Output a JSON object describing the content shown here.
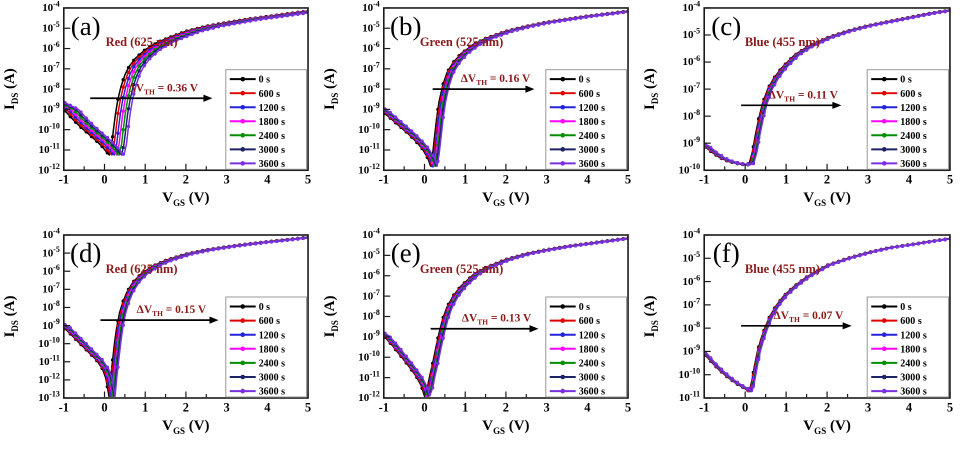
{
  "figure": {
    "background": "#ffffff",
    "text_color": "#000000",
    "accent_text_color": "#8b1a1a",
    "axis_color": "#1a1a1a",
    "legend_border_color": "#999999",
    "legend_bg": "#ffffff",
    "legend_position": "right-center",
    "grid": false,
    "xlabel": {
      "base": "V",
      "sub": "GS",
      "unit": " (V)"
    },
    "ylabel": {
      "base": "I",
      "sub": "DS",
      "unit": " (A)"
    },
    "series": [
      {
        "label": "0 s",
        "color": "#000000"
      },
      {
        "label": "600 s",
        "color": "#e00000"
      },
      {
        "label": "1200 s",
        "color": "#2424dd"
      },
      {
        "label": "1800 s",
        "color": "#ff00ff"
      },
      {
        "label": "2400 s",
        "color": "#008f00"
      },
      {
        "label": "3000 s",
        "color": "#1c2268"
      },
      {
        "label": "3600 s",
        "color": "#7b2fe0"
      }
    ]
  },
  "chart_data": [
    {
      "type": "line",
      "panel_label": "(a)",
      "title": "Red (625 nm)",
      "xlabel_text": "V_GS (V)",
      "ylabel_text": "I_DS (A)",
      "annotation_text": "ΔV_TH = 0.36 V",
      "annotation_parts": {
        "prefix": "ΔV",
        "sub": "TH",
        "value": "= 0.36 V"
      },
      "delta_vth_V": 0.36,
      "xlim": [
        -1,
        5
      ],
      "x_ticks": [
        -1,
        0,
        1,
        2,
        3,
        4,
        5
      ],
      "x_minor_step": 0.5,
      "y_exp_max": -4,
      "y_exp_min": -12,
      "y_tick_exponents": [
        -4,
        -5,
        -6,
        -7,
        -8,
        -9,
        -10,
        -11,
        -12
      ],
      "arrow": {
        "x1": -0.35,
        "x2": 2.65,
        "log_y": -8.45
      },
      "series_shifts_V": [
        0,
        0.06,
        0.12,
        0.18,
        0.24,
        0.3,
        0.36
      ],
      "base_curve": [
        [
          -1.5,
          -8.5
        ],
        [
          -1.2,
          -8.8
        ],
        [
          -1,
          -9.0
        ],
        [
          -0.8,
          -9.45
        ],
        [
          -0.6,
          -9.85
        ],
        [
          -0.4,
          -10.2
        ],
        [
          -0.2,
          -10.55
        ],
        [
          -0.05,
          -10.85
        ],
        [
          0.05,
          -11.1
        ],
        [
          0.12,
          -11.25
        ],
        [
          0.18,
          -10.7
        ],
        [
          0.22,
          -10.0
        ],
        [
          0.27,
          -9.2
        ],
        [
          0.33,
          -8.5
        ],
        [
          0.4,
          -7.9
        ],
        [
          0.5,
          -7.3
        ],
        [
          0.6,
          -6.9
        ],
        [
          0.75,
          -6.5
        ],
        [
          1,
          -6.05
        ],
        [
          1.3,
          -5.7
        ],
        [
          1.6,
          -5.45
        ],
        [
          2,
          -5.15
        ],
        [
          2.5,
          -4.9
        ],
        [
          3,
          -4.72
        ],
        [
          3.5,
          -4.55
        ],
        [
          4,
          -4.42
        ],
        [
          4.5,
          -4.28
        ],
        [
          5,
          -4.15
        ],
        [
          5.5,
          -4.05
        ]
      ]
    },
    {
      "type": "line",
      "panel_label": "(b)",
      "title": "Green (525 nm)",
      "xlabel_text": "V_GS (V)",
      "ylabel_text": "I_DS (A)",
      "annotation_text": "ΔV_TH = 0.16 V",
      "annotation_parts": {
        "prefix": "ΔV",
        "sub": "TH",
        "value": "= 0.16 V"
      },
      "delta_vth_V": 0.16,
      "xlim": [
        -1,
        5
      ],
      "x_ticks": [
        -1,
        0,
        1,
        2,
        3,
        4,
        5
      ],
      "x_minor_step": 0.5,
      "y_exp_max": -4,
      "y_exp_min": -12,
      "y_tick_exponents": [
        -4,
        -5,
        -6,
        -7,
        -8,
        -9,
        -10,
        -11,
        -12
      ],
      "arrow": {
        "x1": 0.2,
        "x2": 2.7,
        "log_y": -8.0
      },
      "series_shifts_V": [
        0,
        0.027,
        0.053,
        0.08,
        0.107,
        0.133,
        0.16
      ],
      "base_curve": [
        [
          -1.5,
          -8.6
        ],
        [
          -1.2,
          -8.9
        ],
        [
          -1,
          -9.15
        ],
        [
          -0.8,
          -9.5
        ],
        [
          -0.6,
          -9.85
        ],
        [
          -0.4,
          -10.2
        ],
        [
          -0.2,
          -10.6
        ],
        [
          -0.05,
          -10.95
        ],
        [
          0.08,
          -11.4
        ],
        [
          0.15,
          -11.8
        ],
        [
          0.2,
          -11.2
        ],
        [
          0.25,
          -10.3
        ],
        [
          0.3,
          -9.4
        ],
        [
          0.36,
          -8.6
        ],
        [
          0.45,
          -7.8
        ],
        [
          0.55,
          -7.2
        ],
        [
          0.7,
          -6.7
        ],
        [
          0.9,
          -6.25
        ],
        [
          1.2,
          -5.8
        ],
        [
          1.5,
          -5.5
        ],
        [
          2,
          -5.15
        ],
        [
          2.5,
          -4.9
        ],
        [
          3,
          -4.7
        ],
        [
          3.5,
          -4.55
        ],
        [
          4,
          -4.4
        ],
        [
          4.5,
          -4.28
        ],
        [
          5,
          -4.15
        ],
        [
          5.5,
          -4.05
        ]
      ]
    },
    {
      "type": "line",
      "panel_label": "(c)",
      "title": "Blue (455 nm)",
      "xlabel_text": "V_GS (V)",
      "ylabel_text": "I_DS (A)",
      "annotation_text": "ΔV_TH = 0.11 V",
      "annotation_parts": {
        "prefix": "ΔV",
        "sub": "TH",
        "value": "= 0.11 V"
      },
      "delta_vth_V": 0.11,
      "xlim": [
        -1,
        5
      ],
      "x_ticks": [
        -1,
        0,
        1,
        2,
        3,
        4,
        5
      ],
      "x_minor_step": 0.5,
      "y_exp_max": -4,
      "y_exp_min": -10,
      "y_tick_exponents": [
        -4,
        -5,
        -6,
        -7,
        -8,
        -9,
        -10
      ],
      "arrow": {
        "x1": -0.1,
        "x2": 2.35,
        "log_y": -7.6
      },
      "series_shifts_V": [
        0,
        0.018,
        0.037,
        0.055,
        0.073,
        0.092,
        0.11
      ],
      "base_curve": [
        [
          -1.5,
          -8.75
        ],
        [
          -1.2,
          -8.95
        ],
        [
          -1,
          -9.1
        ],
        [
          -0.8,
          -9.35
        ],
        [
          -0.6,
          -9.55
        ],
        [
          -0.4,
          -9.68
        ],
        [
          -0.2,
          -9.75
        ],
        [
          0,
          -9.8
        ],
        [
          0.1,
          -9.75
        ],
        [
          0.18,
          -9.3
        ],
        [
          0.25,
          -8.7
        ],
        [
          0.33,
          -8.1
        ],
        [
          0.42,
          -7.55
        ],
        [
          0.55,
          -7.0
        ],
        [
          0.7,
          -6.6
        ],
        [
          0.9,
          -6.2
        ],
        [
          1.2,
          -5.75
        ],
        [
          1.5,
          -5.45
        ],
        [
          2,
          -5.1
        ],
        [
          2.5,
          -4.85
        ],
        [
          3,
          -4.65
        ],
        [
          3.5,
          -4.5
        ],
        [
          4,
          -4.35
        ],
        [
          4.5,
          -4.2
        ],
        [
          5,
          -4.08
        ],
        [
          5.5,
          -4.0
        ]
      ]
    },
    {
      "type": "line",
      "panel_label": "(d)",
      "title": "Red (625 nm)",
      "xlabel_text": "V_GS (V)",
      "ylabel_text": "I_DS (A)",
      "annotation_text": "ΔV_TH = 0.15 V",
      "annotation_parts": {
        "prefix": "ΔV",
        "sub": "TH",
        "value": "= 0.15 V"
      },
      "delta_vth_V": 0.15,
      "xlim": [
        -1,
        5
      ],
      "x_ticks": [
        -1,
        0,
        1,
        2,
        3,
        4,
        5
      ],
      "x_minor_step": 0.5,
      "y_exp_max": -4,
      "y_exp_min": -13,
      "y_tick_exponents": [
        -4,
        -5,
        -6,
        -7,
        -8,
        -9,
        -10,
        -11,
        -12,
        -13
      ],
      "arrow": {
        "x1": -0.1,
        "x2": 2.8,
        "log_y": -8.7
      },
      "series_shifts_V": [
        0,
        0.025,
        0.05,
        0.075,
        0.1,
        0.125,
        0.15
      ],
      "base_curve": [
        [
          -1.5,
          -8.6
        ],
        [
          -1.2,
          -8.85
        ],
        [
          -1,
          -9.1
        ],
        [
          -0.8,
          -9.55
        ],
        [
          -0.6,
          -10.0
        ],
        [
          -0.4,
          -10.45
        ],
        [
          -0.2,
          -10.9
        ],
        [
          -0.05,
          -11.4
        ],
        [
          0.03,
          -11.9
        ],
        [
          0.08,
          -12.5
        ],
        [
          0.11,
          -12.9
        ],
        [
          0.15,
          -11.9
        ],
        [
          0.2,
          -10.9
        ],
        [
          0.25,
          -9.9
        ],
        [
          0.3,
          -9.1
        ],
        [
          0.37,
          -8.3
        ],
        [
          0.45,
          -7.7
        ],
        [
          0.55,
          -7.15
        ],
        [
          0.7,
          -6.6
        ],
        [
          0.9,
          -6.15
        ],
        [
          1.2,
          -5.7
        ],
        [
          1.5,
          -5.4
        ],
        [
          2,
          -5.05
        ],
        [
          2.5,
          -4.82
        ],
        [
          3,
          -4.65
        ],
        [
          3.5,
          -4.5
        ],
        [
          4,
          -4.37
        ],
        [
          4.5,
          -4.25
        ],
        [
          5,
          -4.12
        ],
        [
          5.5,
          -4.02
        ]
      ]
    },
    {
      "type": "line",
      "panel_label": "(e)",
      "title": "Green (525 nm)",
      "xlabel_text": "V_GS (V)",
      "ylabel_text": "I_DS (A)",
      "annotation_text": "ΔV_TH = 0.13 V",
      "annotation_parts": {
        "prefix": "ΔV",
        "sub": "TH",
        "value": "= 0.13 V"
      },
      "delta_vth_V": 0.13,
      "xlim": [
        -1,
        5
      ],
      "x_ticks": [
        -1,
        0,
        1,
        2,
        3,
        4,
        5
      ],
      "x_minor_step": 0.5,
      "y_exp_max": -4,
      "y_exp_min": -12,
      "y_tick_exponents": [
        -4,
        -5,
        -6,
        -7,
        -8,
        -9,
        -10,
        -11,
        -12
      ],
      "arrow": {
        "x1": 0.15,
        "x2": 2.8,
        "log_y": -8.6
      },
      "series_shifts_V": [
        0,
        0.022,
        0.043,
        0.065,
        0.087,
        0.108,
        0.13
      ],
      "base_curve": [
        [
          -1.5,
          -8.45
        ],
        [
          -1.2,
          -8.7
        ],
        [
          -1,
          -8.95
        ],
        [
          -0.8,
          -9.4
        ],
        [
          -0.6,
          -9.9
        ],
        [
          -0.4,
          -10.4
        ],
        [
          -0.2,
          -10.95
        ],
        [
          -0.08,
          -11.4
        ],
        [
          0,
          -11.9
        ],
        [
          0.07,
          -11.5
        ],
        [
          0.12,
          -11.0
        ],
        [
          0.2,
          -10.3
        ],
        [
          0.28,
          -9.5
        ],
        [
          0.36,
          -8.8
        ],
        [
          0.45,
          -8.1
        ],
        [
          0.55,
          -7.55
        ],
        [
          0.7,
          -7.0
        ],
        [
          0.9,
          -6.5
        ],
        [
          1.2,
          -5.95
        ],
        [
          1.5,
          -5.6
        ],
        [
          2,
          -5.2
        ],
        [
          2.5,
          -4.92
        ],
        [
          3,
          -4.72
        ],
        [
          3.5,
          -4.55
        ],
        [
          4,
          -4.42
        ],
        [
          4.5,
          -4.28
        ],
        [
          5,
          -4.15
        ],
        [
          5.5,
          -4.05
        ]
      ]
    },
    {
      "type": "line",
      "panel_label": "(f)",
      "title": "Blue (455 nm)",
      "xlabel_text": "V_GS (V)",
      "ylabel_text": "I_DS (A)",
      "annotation_text": "ΔV_TH = 0.07 V",
      "annotation_parts": {
        "prefix": "ΔV",
        "sub": "TH",
        "value": "= 0.07 V"
      },
      "delta_vth_V": 0.07,
      "xlim": [
        -1,
        5
      ],
      "x_ticks": [
        -1,
        0,
        1,
        2,
        3,
        4,
        5
      ],
      "x_minor_step": 0.5,
      "y_exp_max": -4,
      "y_exp_min": -11,
      "y_tick_exponents": [
        -4,
        -5,
        -6,
        -7,
        -8,
        -9,
        -10,
        -11
      ],
      "arrow": {
        "x1": -0.1,
        "x2": 2.6,
        "log_y": -7.9
      },
      "series_shifts_V": [
        0,
        0.012,
        0.023,
        0.035,
        0.047,
        0.058,
        0.07
      ],
      "base_curve": [
        [
          -1.5,
          -8.7
        ],
        [
          -1.2,
          -8.9
        ],
        [
          -1,
          -9.1
        ],
        [
          -0.8,
          -9.5
        ],
        [
          -0.6,
          -9.85
        ],
        [
          -0.4,
          -10.15
        ],
        [
          -0.2,
          -10.4
        ],
        [
          0,
          -10.6
        ],
        [
          0.1,
          -10.72
        ],
        [
          0.17,
          -10.2
        ],
        [
          0.23,
          -9.6
        ],
        [
          0.3,
          -9.0
        ],
        [
          0.38,
          -8.5
        ],
        [
          0.48,
          -8.0
        ],
        [
          0.6,
          -7.5
        ],
        [
          0.75,
          -7.05
        ],
        [
          0.95,
          -6.6
        ],
        [
          1.2,
          -6.2
        ],
        [
          1.5,
          -5.8
        ],
        [
          2,
          -5.3
        ],
        [
          2.5,
          -5.0
        ],
        [
          3,
          -4.75
        ],
        [
          3.5,
          -4.55
        ],
        [
          4,
          -4.42
        ],
        [
          4.5,
          -4.28
        ],
        [
          5,
          -4.15
        ],
        [
          5.5,
          -4.05
        ]
      ]
    }
  ]
}
